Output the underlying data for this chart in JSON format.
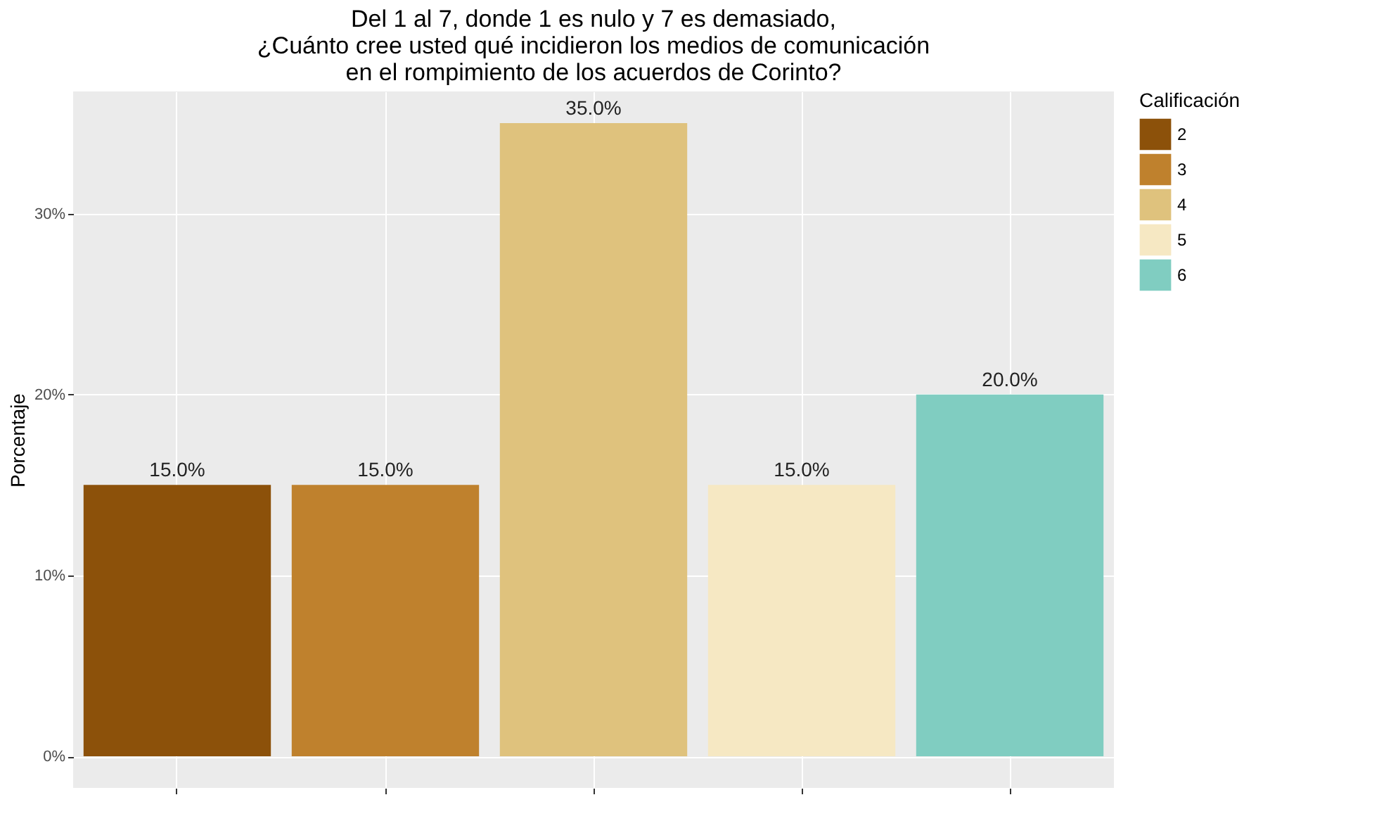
{
  "chart_data": {
    "type": "bar",
    "title": [
      "Del 1 al 7, donde 1 es nulo y 7 es demasiado,",
      "¿Cuánto cree usted qué incidieron los medios de comunicación",
      "en el rompimiento de los acuerdos de Corinto?"
    ],
    "ylabel": "Porcentaje",
    "legend_title": "Calificación",
    "categories": [
      null,
      null,
      null,
      null,
      null
    ],
    "series": [
      {
        "name": "2",
        "color": "#8c510a",
        "values": [
          15,
          null,
          null,
          null,
          null
        ],
        "value_labels": [
          "15.0%",
          null,
          null,
          null,
          null
        ]
      },
      {
        "name": "3",
        "color": "#bf812d",
        "values": [
          null,
          15,
          null,
          null,
          null
        ],
        "value_labels": [
          null,
          "15.0%",
          null,
          null,
          null
        ]
      },
      {
        "name": "4",
        "color": "#dfc27d",
        "values": [
          null,
          null,
          35,
          null,
          null
        ],
        "value_labels": [
          null,
          null,
          "35.0%",
          null,
          null
        ]
      },
      {
        "name": "5",
        "color": "#f6e8c3",
        "values": [
          null,
          null,
          null,
          15,
          null
        ],
        "value_labels": [
          null,
          null,
          null,
          "15.0%",
          null
        ]
      },
      {
        "name": "6",
        "color": "#80cdc1",
        "values": [
          null,
          null,
          null,
          null,
          20
        ],
        "value_labels": [
          null,
          null,
          null,
          null,
          "20.0%"
        ]
      }
    ],
    "ylim": [
      -1.75,
      36.75
    ],
    "yticks": [
      {
        "value": 0,
        "label": "0%"
      },
      {
        "value": 10,
        "label": "10%"
      },
      {
        "value": 20,
        "label": "20%"
      },
      {
        "value": 30,
        "label": "30%"
      }
    ],
    "grid": true,
    "legend": "right",
    "tick_labels": "y"
  }
}
